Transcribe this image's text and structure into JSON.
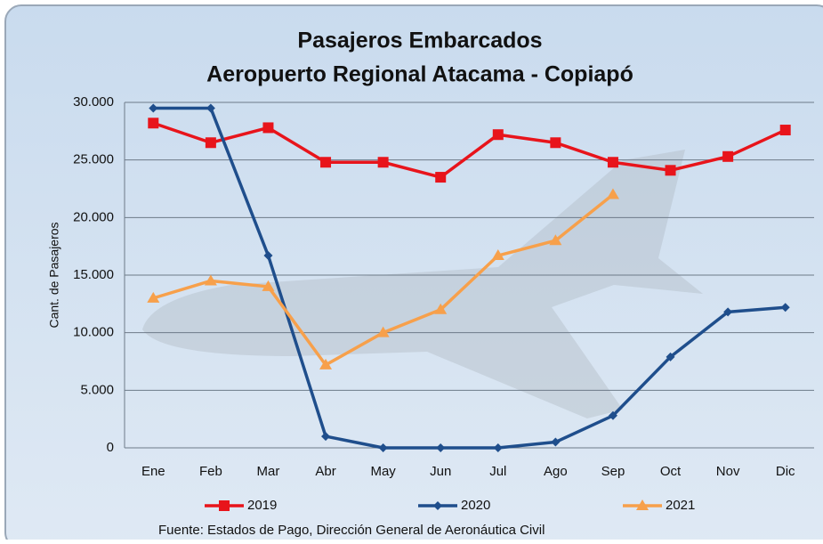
{
  "chart_data": {
    "type": "line",
    "title": [
      "Pasajeros Embarcados",
      "Aeropuerto Regional Atacama - Copiapó"
    ],
    "y_label": "Cant. de Pasajeros",
    "source": "Fuente: Estados de Pago, Dirección General de Aeronáutica Civil",
    "categories": [
      "Ene",
      "Feb",
      "Mar",
      "Abr",
      "May",
      "Jun",
      "Jul",
      "Ago",
      "Sep",
      "Oct",
      "Nov",
      "Dic"
    ],
    "series": [
      {
        "name": "2019",
        "color": "#e8141b",
        "marker": "square",
        "values": [
          28200,
          26500,
          27800,
          24800,
          24800,
          23500,
          27200,
          26500,
          24800,
          24100,
          25300,
          27600
        ]
      },
      {
        "name": "2020",
        "color": "#1f4e8c",
        "marker": "diamond",
        "values": [
          29500,
          29500,
          16700,
          1000,
          0,
          0,
          0,
          500,
          2800,
          7900,
          11800,
          12200
        ]
      },
      {
        "name": "2021",
        "color": "#f7a04b",
        "marker": "triangle",
        "values": [
          13000,
          14500,
          14000,
          7200,
          10000,
          12000,
          16700,
          18000,
          22000,
          null,
          null,
          null
        ]
      }
    ],
    "ylim": [
      0,
      30000
    ],
    "yticks": [
      0,
      {
        "value": 5000,
        "label": "5.000"
      },
      {
        "value": 10000,
        "label": "10.000"
      },
      {
        "value": 15000,
        "label": "15.000"
      },
      {
        "value": 20000,
        "label": "20.000"
      },
      {
        "value": 25000,
        "label": "25.000"
      },
      {
        "value": 30000,
        "label": "30.000"
      }
    ],
    "grid": true
  }
}
